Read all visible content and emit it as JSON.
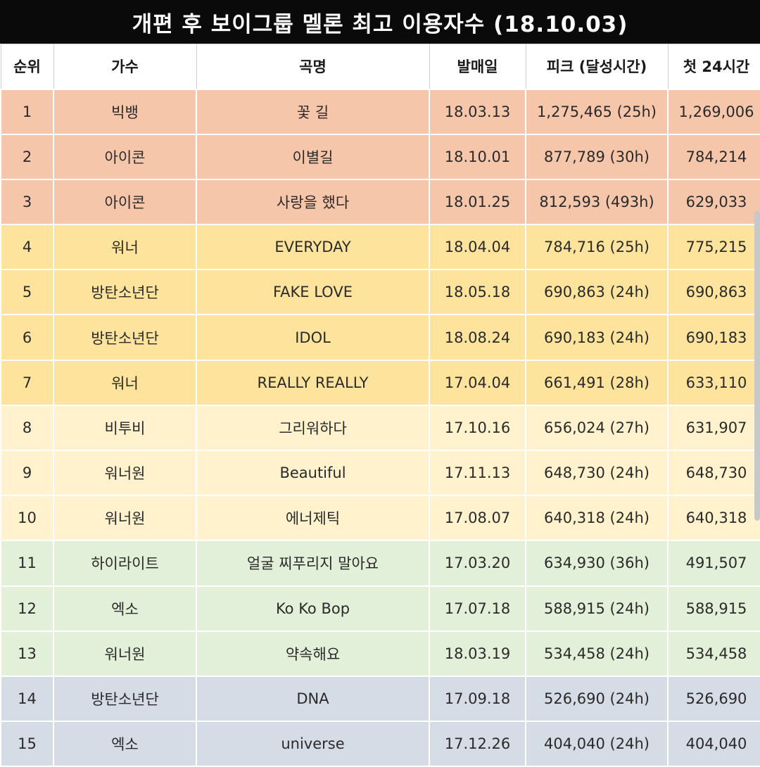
{
  "title": "개편 후 보이그룹 멜론 최고 이용자수 (18.10.03)",
  "headers": {
    "rank": "순위",
    "artist": "가수",
    "song": "곡명",
    "release": "발매일",
    "peak": "피크 (달성시간)",
    "first24": "첫 24시간"
  },
  "colors": {
    "tier_1": "#f6c6ab",
    "tier_2": "#fde39c",
    "tier_3": "#fff2cd",
    "tier_4": "#e3f0d9",
    "tier_5": "#d6dce6"
  },
  "rows": [
    {
      "rank": "1",
      "artist": "빅뱅",
      "song": "꽃 길",
      "release": "18.03.13",
      "peak": "1,275,465 (25h)",
      "first24": "1,269,006"
    },
    {
      "rank": "2",
      "artist": "아이콘",
      "song": "이별길",
      "release": "18.10.01",
      "peak": "877,789 (30h)",
      "first24": "784,214"
    },
    {
      "rank": "3",
      "artist": "아이콘",
      "song": "사랑을 했다",
      "release": "18.01.25",
      "peak": "812,593 (493h)",
      "first24": "629,033"
    },
    {
      "rank": "4",
      "artist": "워너",
      "song": "EVERYDAY",
      "release": "18.04.04",
      "peak": "784,716 (25h)",
      "first24": "775,215"
    },
    {
      "rank": "5",
      "artist": "방탄소년단",
      "song": "FAKE LOVE",
      "release": "18.05.18",
      "peak": "690,863 (24h)",
      "first24": "690,863"
    },
    {
      "rank": "6",
      "artist": "방탄소년단",
      "song": "IDOL",
      "release": "18.08.24",
      "peak": "690,183 (24h)",
      "first24": "690,183"
    },
    {
      "rank": "7",
      "artist": "워너",
      "song": "REALLY REALLY",
      "release": "17.04.04",
      "peak": "661,491 (28h)",
      "first24": "633,110"
    },
    {
      "rank": "8",
      "artist": "비투비",
      "song": "그리워하다",
      "release": "17.10.16",
      "peak": "656,024 (27h)",
      "first24": "631,907"
    },
    {
      "rank": "9",
      "artist": "워너원",
      "song": "Beautiful",
      "release": "17.11.13",
      "peak": "648,730 (24h)",
      "first24": "648,730"
    },
    {
      "rank": "10",
      "artist": "워너원",
      "song": "에너제틱",
      "release": "17.08.07",
      "peak": "640,318 (24h)",
      "first24": "640,318"
    },
    {
      "rank": "11",
      "artist": "하이라이트",
      "song": "얼굴 찌푸리지 말아요",
      "release": "17.03.20",
      "peak": "634,930 (36h)",
      "first24": "491,507"
    },
    {
      "rank": "12",
      "artist": "엑소",
      "song": "Ko Ko Bop",
      "release": "17.07.18",
      "peak": "588,915 (24h)",
      "first24": "588,915"
    },
    {
      "rank": "13",
      "artist": "워너원",
      "song": "약속해요",
      "release": "18.03.19",
      "peak": "534,458 (24h)",
      "first24": "534,458"
    },
    {
      "rank": "14",
      "artist": "방탄소년단",
      "song": "DNA",
      "release": "17.09.18",
      "peak": "526,690 (24h)",
      "first24": "526,690"
    },
    {
      "rank": "15",
      "artist": "엑소",
      "song": "universe",
      "release": "17.12.26",
      "peak": "404,040 (24h)",
      "first24": "404,040"
    }
  ]
}
